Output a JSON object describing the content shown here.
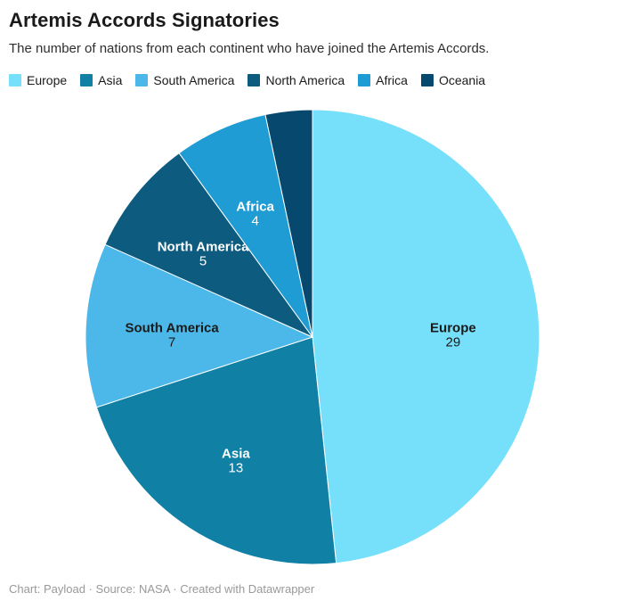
{
  "header": {
    "title": "Artemis Accords Signatories",
    "subtitle": "The number of nations from each continent who have joined the Artemis Accords."
  },
  "footer": {
    "text": "Chart: Payload · Source: NASA · Created with Datawrapper"
  },
  "chart_data": {
    "type": "pie",
    "title": "Artemis Accords Signatories",
    "subtitle": "The number of nations from each continent who have joined the Artemis Accords.",
    "total": 60,
    "start_angle_deg": 0,
    "direction": "clockwise",
    "legend_position": "top",
    "separator_color": "#ffffff",
    "slices": [
      {
        "name": "Europe",
        "value": 29,
        "color": "#76DFFA",
        "label_color": "#1a1a1a",
        "show_label": true
      },
      {
        "name": "Asia",
        "value": 13,
        "color": "#1180A5",
        "label_color": "#ffffff",
        "show_label": true
      },
      {
        "name": "South America",
        "value": 7,
        "color": "#4CB8E9",
        "label_color": "#1a1a1a",
        "show_label": true
      },
      {
        "name": "North America",
        "value": 5,
        "color": "#0D5C80",
        "label_color": "#ffffff",
        "show_label": true
      },
      {
        "name": "Africa",
        "value": 4,
        "color": "#1F9CD3",
        "label_color": "#ffffff",
        "show_label": true
      },
      {
        "name": "Oceania",
        "value": 2,
        "color": "#07486E",
        "label_color": "#ffffff",
        "show_label": false
      }
    ]
  }
}
